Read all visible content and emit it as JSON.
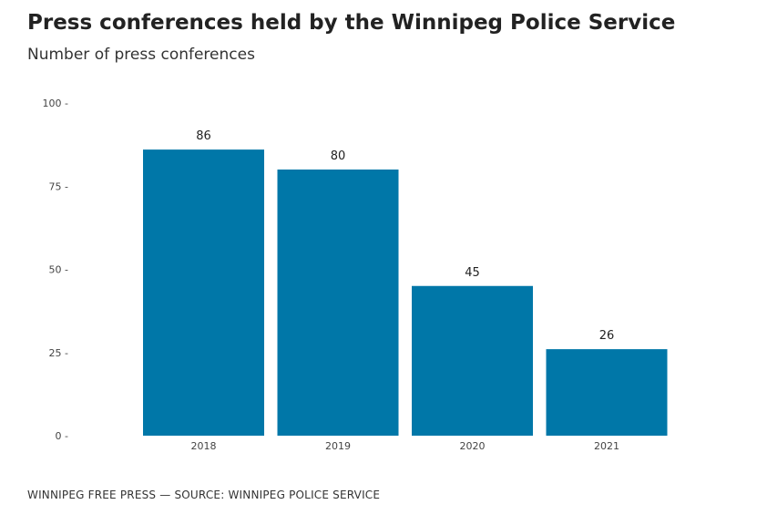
{
  "title": "Press conferences held by the Winnipeg Police Service",
  "subtitle": "Number of press conferences",
  "source": "WINNIPEG FREE PRESS — SOURCE: WINNIPEG POLICE SERVICE",
  "colors": {
    "bar": "#0077a8",
    "text": "#222222",
    "axis": "#444444"
  },
  "chart_data": {
    "type": "bar",
    "title": "Press conferences held by the Winnipeg Police Service",
    "subtitle": "Number of press conferences",
    "categories": [
      "2018",
      "2019",
      "2020",
      "2021"
    ],
    "values": [
      86,
      80,
      45,
      26
    ],
    "ylim": [
      0,
      100
    ],
    "yticks": [
      0,
      25,
      50,
      75,
      100
    ],
    "ytick_labels": [
      "0 -",
      "25 -",
      "50 -",
      "75 -",
      "100 -"
    ],
    "xlabel": "",
    "ylabel": "",
    "data_labels": true,
    "grid": false,
    "legend": false
  }
}
